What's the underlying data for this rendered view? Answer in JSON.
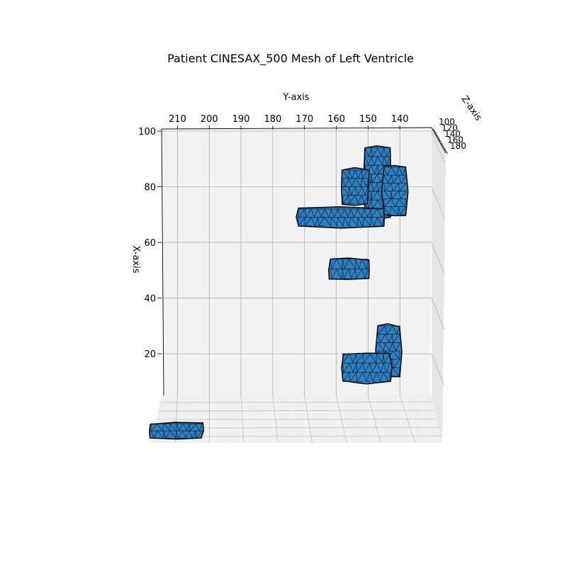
{
  "chart_data": {
    "type": "surface3d",
    "title": "Patient CINESAX_500 Mesh of Left Ventricle",
    "xlabel": "X-axis",
    "ylabel": "Y-axis",
    "zlabel": "Z-axis",
    "x_ticks": [
      "20",
      "40",
      "60",
      "80",
      "100"
    ],
    "y_ticks": [
      "210",
      "200",
      "190",
      "180",
      "170",
      "160",
      "150",
      "140"
    ],
    "z_ticks": [
      "100",
      "120",
      "140",
      "160",
      "180"
    ],
    "xlim": [
      5,
      100
    ],
    "ylim": [
      130,
      215
    ],
    "zlim": [
      95,
      185
    ],
    "grid": true,
    "mesh_color": "#2f7fc1",
    "edge_color": "#0a0a0a",
    "pane_color": "#f2f2f2",
    "series": [
      {
        "part": "upper-mesh",
        "regions": [
          {
            "y": [
              143,
              151
            ],
            "x": [
              69,
              94
            ]
          },
          {
            "y": [
              138,
              145
            ],
            "x": [
              70,
              87
            ]
          },
          {
            "y": [
              145,
              172
            ],
            "x": [
              66,
              72
            ]
          },
          {
            "y": [
              150,
              158
            ],
            "x": [
              74,
              86
            ]
          }
        ]
      },
      {
        "part": "middle-blob",
        "regions": [
          {
            "y": [
              150,
              162
            ],
            "x": [
              47,
              54
            ]
          }
        ]
      },
      {
        "part": "lower-mesh",
        "regions": [
          {
            "y": [
              140,
              147
            ],
            "x": [
              12,
              30
            ]
          },
          {
            "y": [
              143,
              158
            ],
            "x": [
              10,
              20
            ]
          }
        ]
      },
      {
        "part": "floor-blob",
        "regions": [
          {
            "y": [
              200,
              215
            ],
            "x": [
              0,
              5
            ]
          }
        ]
      }
    ]
  }
}
